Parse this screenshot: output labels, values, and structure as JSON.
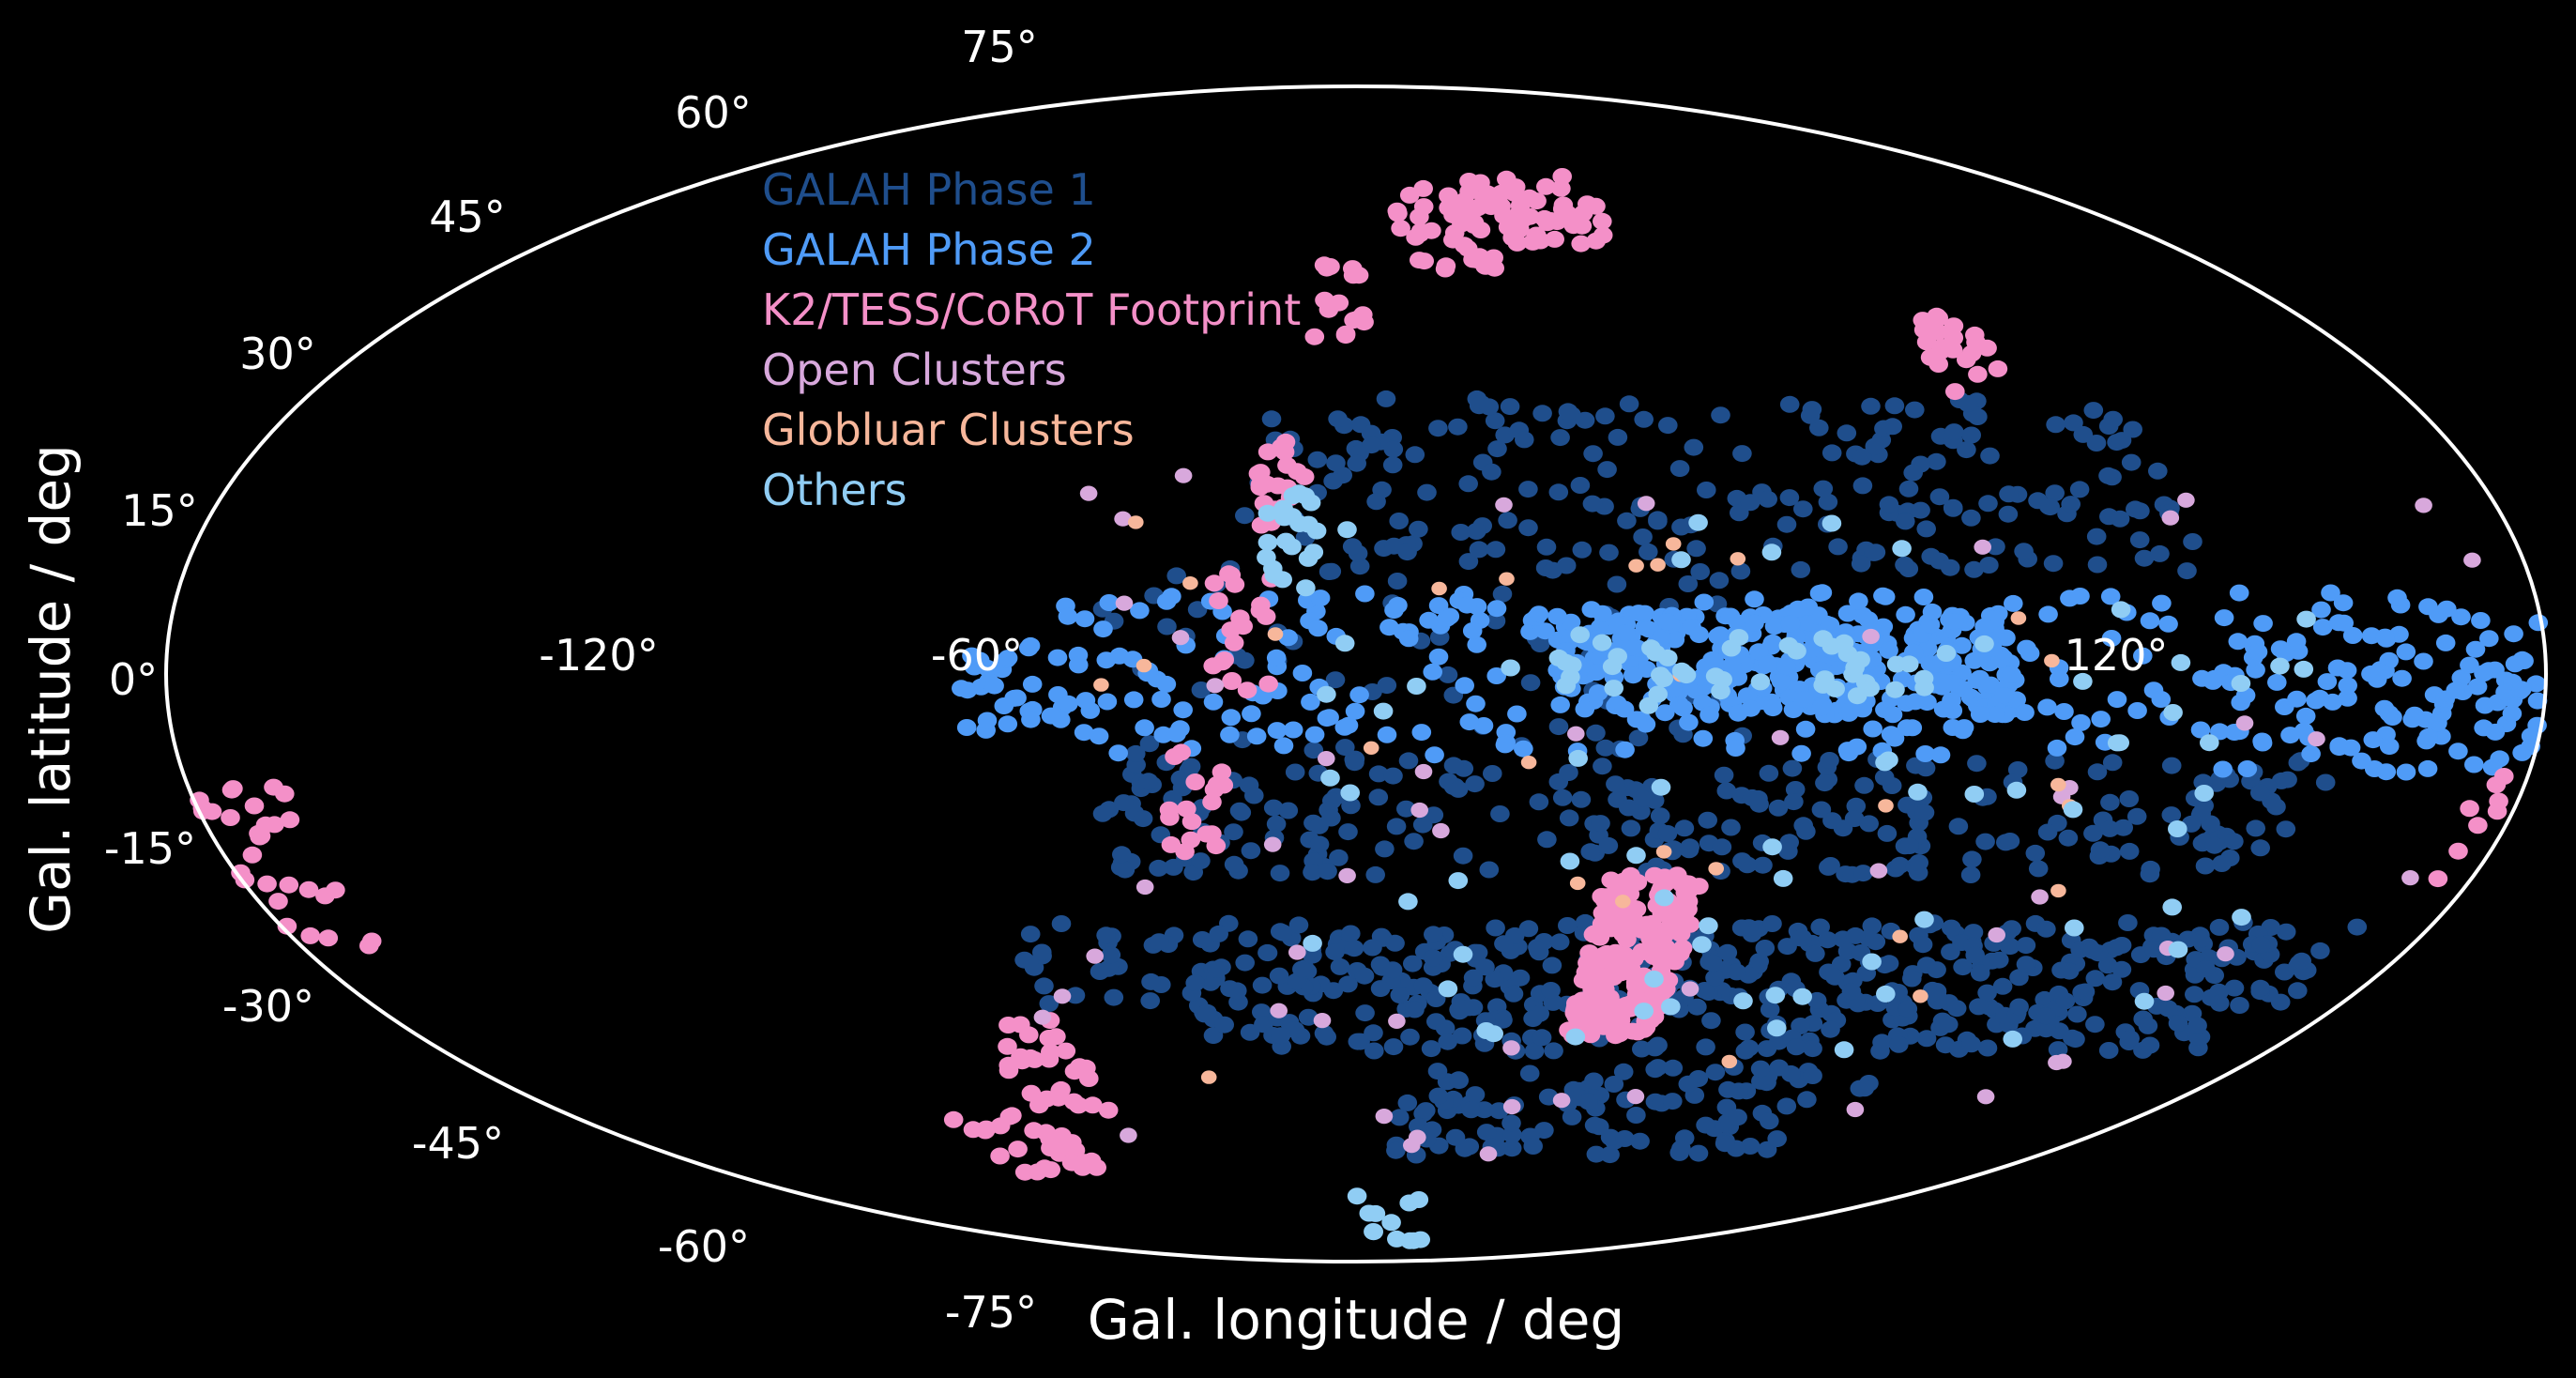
{
  "chart_data": {
    "type": "scatter",
    "projection": "aitoff/mollweide-style full-sky ellipse",
    "xlabel": "Gal. longitude / deg",
    "ylabel": "Gal. latitude / deg",
    "xlim": [
      -180,
      180
    ],
    "ylim": [
      -90,
      90
    ],
    "grid": false,
    "legend_position": "upper-left",
    "x_ticks": [
      {
        "value": -120,
        "label": "-120°"
      },
      {
        "value": -60,
        "label": "-60°"
      },
      {
        "value": 120,
        "label": "120°"
      }
    ],
    "y_ticks": [
      {
        "value": 75,
        "label": "75°"
      },
      {
        "value": 60,
        "label": "60°"
      },
      {
        "value": 45,
        "label": "45°"
      },
      {
        "value": 30,
        "label": "30°"
      },
      {
        "value": 15,
        "label": "15°"
      },
      {
        "value": 0,
        "label": "0°"
      },
      {
        "value": -15,
        "label": "-15°"
      },
      {
        "value": -30,
        "label": "-30°"
      },
      {
        "value": -45,
        "label": "-45°"
      },
      {
        "value": -60,
        "label": "-60°"
      },
      {
        "value": -75,
        "label": "-75°"
      }
    ],
    "series": [
      {
        "name": "GALAH Phase 1",
        "color": "#1f4e8c",
        "marker_size": 1.0,
        "regions": [
          {
            "l": [
              -30,
              170
            ],
            "b": [
              -40,
              -25
            ],
            "n": 380
          },
          {
            "l": [
              -40,
              150
            ],
            "b": [
              -20,
              -8
            ],
            "n": 260
          },
          {
            "l": [
              -20,
              130
            ],
            "b": [
              10,
              28
            ],
            "n": 220
          },
          {
            "l": [
              -60,
              160
            ],
            "b": [
              -35,
              -25
            ],
            "n": 120
          },
          {
            "l": [
              10,
              110
            ],
            "b": [
              -55,
              -42
            ],
            "n": 110
          },
          {
            "l": [
              -40,
              60
            ],
            "b": [
              -8,
              10
            ],
            "n": 60
          }
        ]
      },
      {
        "name": "GALAH Phase 2",
        "color": "#4f9bf7",
        "marker_size": 1.0,
        "regions": [
          {
            "l": [
              30,
              100
            ],
            "b": [
              -4,
              6
            ],
            "n": 320
          },
          {
            "l": [
              -50,
              180
            ],
            "b": [
              -8,
              8
            ],
            "n": 280
          },
          {
            "l": [
              130,
              180
            ],
            "b": [
              -10,
              4
            ],
            "n": 80
          },
          {
            "l": [
              -60,
              -40
            ],
            "b": [
              -6,
              2
            ],
            "n": 30
          }
        ]
      },
      {
        "name": "K2/TESS/CoRoT Footprint",
        "color": "#f490c8",
        "marker_size": 1.0,
        "regions": [
          {
            "l": [
              40,
              56
            ],
            "b": [
              -38,
              -20
            ],
            "n": 220
          },
          {
            "l": [
              10,
              30
            ],
            "b": [
              43,
              56
            ],
            "n": 40
          },
          {
            "l": [
              30,
              60
            ],
            "b": [
              47,
              58
            ],
            "n": 50
          },
          {
            "l": [
              -8,
              2
            ],
            "b": [
              35,
              45
            ],
            "n": 16
          },
          {
            "l": [
              -16,
              -8
            ],
            "b": [
              14,
              24
            ],
            "n": 20
          },
          {
            "l": [
              -22,
              -12
            ],
            "b": [
              -2,
              10
            ],
            "n": 20
          },
          {
            "l": [
              -30,
              -20
            ],
            "b": [
              -18,
              -6
            ],
            "n": 18
          },
          {
            "l": [
              103,
              115
            ],
            "b": [
              28,
              38
            ],
            "n": 24
          },
          {
            "l": [
              -72,
              -55
            ],
            "b": [
              -48,
              -36
            ],
            "n": 30
          },
          {
            "l": [
              -95,
              -70
            ],
            "b": [
              -58,
              -48
            ],
            "n": 30
          },
          {
            "l": [
              -180,
              -165
            ],
            "b": [
              -28,
              -10
            ],
            "n": 30
          },
          {
            "l": [
              172,
              180
            ],
            "b": [
              -22,
              -10
            ],
            "n": 8
          }
        ]
      },
      {
        "name": "Open Clusters",
        "color": "#d8a8dc",
        "marker_size": 0.9,
        "regions": [
          {
            "l": [
              -60,
              175
            ],
            "b": [
              -55,
              20
            ],
            "n": 55
          }
        ]
      },
      {
        "name": "Globluar Clusters",
        "color": "#f7b79b",
        "marker_size": 0.8,
        "regions": [
          {
            "l": [
              -40,
              120
            ],
            "b": [
              -45,
              15
            ],
            "n": 28
          }
        ]
      },
      {
        "name": "Others",
        "color": "#90cdf4",
        "marker_size": 1.0,
        "regions": [
          {
            "l": [
              -10,
              150
            ],
            "b": [
              -40,
              15
            ],
            "n": 75
          },
          {
            "l": [
              30,
              90
            ],
            "b": [
              -2,
              4
            ],
            "n": 40
          },
          {
            "l": [
              -14,
              -6
            ],
            "b": [
              8,
              18
            ],
            "n": 20
          },
          {
            "l": [
              0,
              40
            ],
            "b": [
              -75,
              -62
            ],
            "n": 12
          }
        ]
      }
    ]
  }
}
